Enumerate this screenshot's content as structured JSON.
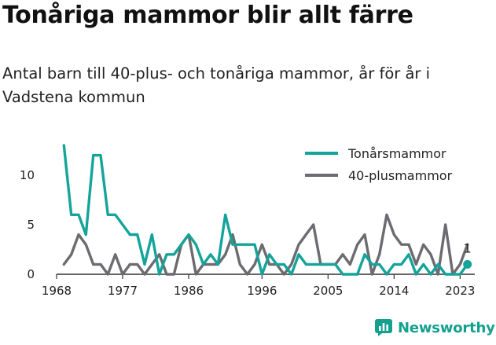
{
  "title": "Tonåriga mammor blir allt färre",
  "subtitle": "Antal barn till 40-plus- och tonåriga mammor, år för år i Vadstena kommun",
  "brand": "Newsworthy",
  "colors": {
    "teen": "#14a49a",
    "forty": "#6b6b70",
    "axis": "#333333",
    "brand": "#14a08f"
  },
  "icons": {
    "logo": "bar-chart-logo-icon"
  },
  "chart_data": {
    "type": "line",
    "legend_position": "top-right",
    "grid": false,
    "x_ticks": [
      1968,
      1977,
      1986,
      1996,
      2005,
      2014,
      2023
    ],
    "y_ticks": [
      0,
      5,
      10
    ],
    "xlim": [
      1968,
      2025
    ],
    "ylim": [
      0,
      13
    ],
    "x": [
      1969,
      1970,
      1971,
      1972,
      1973,
      1974,
      1975,
      1976,
      1977,
      1978,
      1979,
      1980,
      1981,
      1982,
      1983,
      1984,
      1985,
      1986,
      1987,
      1988,
      1989,
      1990,
      1991,
      1992,
      1993,
      1994,
      1995,
      1996,
      1997,
      1998,
      1999,
      2000,
      2001,
      2002,
      2003,
      2004,
      2005,
      2006,
      2007,
      2008,
      2009,
      2010,
      2011,
      2012,
      2013,
      2014,
      2015,
      2016,
      2017,
      2018,
      2019,
      2020,
      2021,
      2022,
      2023,
      2024
    ],
    "series": [
      {
        "name": "Tonårsmammor",
        "color": "#14a49a",
        "values": [
          13,
          6,
          6,
          4,
          12,
          12,
          6,
          6,
          5,
          4,
          4,
          1,
          4,
          0,
          2,
          2,
          3,
          4,
          3,
          1,
          2,
          1,
          6,
          3,
          3,
          3,
          3,
          0,
          2,
          1,
          1,
          0,
          2,
          1,
          1,
          1,
          1,
          1,
          0,
          0,
          0,
          2,
          1,
          1,
          0,
          1,
          1,
          2,
          0,
          1,
          0,
          1,
          0,
          0,
          0,
          1
        ]
      },
      {
        "name": "40-plusmammor",
        "color": "#6b6b70",
        "values": [
          1,
          2,
          4,
          3,
          1,
          1,
          0,
          2,
          0,
          1,
          1,
          0,
          1,
          2,
          0,
          0,
          3,
          4,
          0,
          1,
          1,
          1,
          2,
          4,
          1,
          0,
          1,
          3,
          1,
          1,
          0,
          1,
          3,
          4,
          5,
          1,
          1,
          1,
          2,
          1,
          3,
          4,
          0,
          2,
          6,
          4,
          3,
          3,
          1,
          3,
          2,
          0,
          5,
          0,
          1,
          3
        ]
      }
    ],
    "annotations": [
      {
        "x": 2024,
        "series": "Tonårsmammor",
        "value": 1,
        "text": "1"
      }
    ]
  }
}
